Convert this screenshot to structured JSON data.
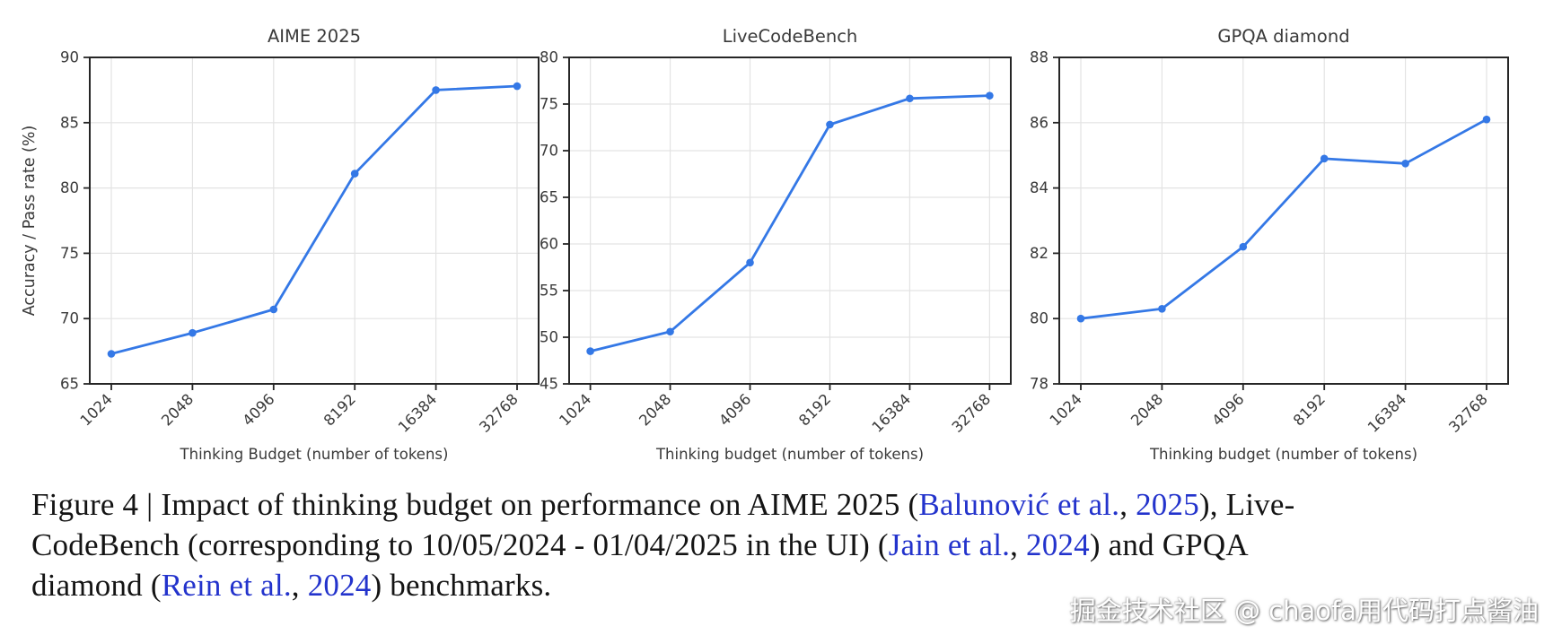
{
  "colors": {
    "line": "#3478e6",
    "grid": "#e3e3e3",
    "spine": "#262626",
    "text": "#3a3a3a",
    "link": "#2333cc"
  },
  "chart_data": [
    {
      "type": "line",
      "title": "AIME 2025",
      "xlabel": "Thinking Budget (number of tokens)",
      "ylabel": "Accuracy / Pass rate (%)",
      "categories": [
        "1024",
        "2048",
        "4096",
        "8192",
        "16384",
        "32768"
      ],
      "values": [
        67.3,
        68.9,
        70.7,
        81.1,
        87.5,
        87.8
      ],
      "ylim": [
        65,
        90
      ],
      "ytick_step": 5,
      "grid": true,
      "line_color": "#3478e6",
      "legend": "none"
    },
    {
      "type": "line",
      "title": "LiveCodeBench",
      "xlabel": "Thinking budget (number of tokens)",
      "ylabel": "",
      "categories": [
        "1024",
        "2048",
        "4096",
        "8192",
        "16384",
        "32768"
      ],
      "values": [
        48.5,
        50.6,
        58.0,
        72.8,
        75.6,
        75.9
      ],
      "ylim": [
        45,
        80
      ],
      "ytick_step": 5,
      "grid": true,
      "line_color": "#3478e6",
      "legend": "none"
    },
    {
      "type": "line",
      "title": "GPQA diamond",
      "xlabel": "Thinking budget (number of tokens)",
      "ylabel": "",
      "categories": [
        "1024",
        "2048",
        "4096",
        "8192",
        "16384",
        "32768"
      ],
      "values": [
        80.0,
        80.3,
        82.2,
        84.9,
        84.75,
        86.1
      ],
      "ylim": [
        78,
        88
      ],
      "ytick_step": 2,
      "grid": true,
      "line_color": "#3478e6",
      "legend": "none"
    }
  ],
  "caption": {
    "lines": [
      [
        {
          "text": "Figure 4 | Impact of thinking budget on performance on AIME 2025 ("
        },
        {
          "text": "Balunović et al.",
          "link": true
        },
        {
          "text": ", "
        },
        {
          "text": "2025",
          "link": true
        },
        {
          "text": "), Live-"
        }
      ],
      [
        {
          "text": "CodeBench (corresponding to 10/05/2024 - 01/04/2025 in the UI) ("
        },
        {
          "text": "Jain et al.",
          "link": true
        },
        {
          "text": ", "
        },
        {
          "text": "2024",
          "link": true
        },
        {
          "text": ") and GPQA"
        }
      ],
      [
        {
          "text": "diamond ("
        },
        {
          "text": "Rein et al.",
          "link": true
        },
        {
          "text": ", "
        },
        {
          "text": "2024",
          "link": true
        },
        {
          "text": ") benchmarks."
        }
      ]
    ]
  },
  "watermark": {
    "text": "掘金技术社区 @ chaofa用代码打点酱油"
  }
}
